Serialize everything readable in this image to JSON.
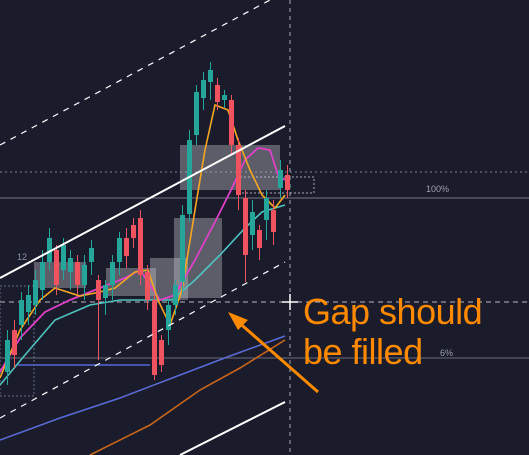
{
  "annotation": {
    "line1": "Gap should",
    "line2": "be filled"
  },
  "fib_labels": {
    "level_100": "100%",
    "level_low": "6%",
    "side": "12"
  },
  "colors": {
    "background": "#1b1c2b",
    "bull_candle": "#26a69a",
    "bear_candle": "#ef5360",
    "ema_yellow": "#f5a623",
    "ema_magenta": "#e040c8",
    "ema_teal": "#4fc3c0",
    "ema_blue": "#5a6bd8",
    "ema_orange": "#c8651b",
    "channel": "#ffffff",
    "annotation": "#ff8a00",
    "gap_box": "#c8c8cc",
    "fib_line": "#9ca0b0"
  },
  "icons": {
    "crosshair": "crosshair-icon",
    "arrow": "arrow-icon"
  }
}
